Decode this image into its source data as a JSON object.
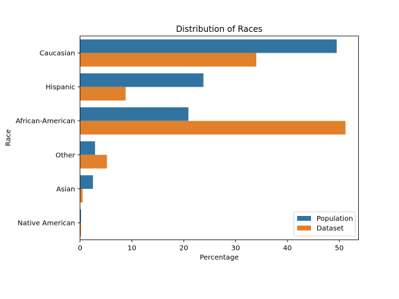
{
  "chart_data": {
    "type": "bar",
    "orientation": "horizontal",
    "title": "Distribution of Races",
    "xlabel": "Percentage",
    "ylabel": "Race",
    "categories": [
      "Caucasian",
      "Hispanic",
      "African-American",
      "Other",
      "Asian",
      "Native American"
    ],
    "series": [
      {
        "name": "Population",
        "color": "#3274a1",
        "values": [
          49.5,
          23.8,
          20.9,
          2.9,
          2.5,
          0.2
        ]
      },
      {
        "name": "Dataset",
        "color": "#e1812c",
        "values": [
          34.0,
          8.8,
          51.2,
          5.2,
          0.5,
          0.2
        ]
      }
    ],
    "xlim": [
      0,
      53.7
    ],
    "xticks": [
      0,
      10,
      20,
      30,
      40,
      50
    ],
    "grid": false,
    "legend_position": "lower-right"
  }
}
